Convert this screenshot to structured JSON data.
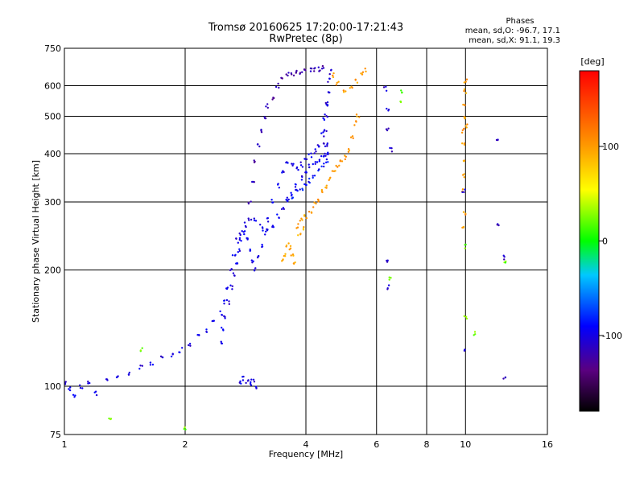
{
  "chart_data": {
    "type": "scatter",
    "title": "Tromsø 20160625 17:20:00-17:21:43",
    "subtitle": "RwPretec (8p)",
    "xlabel": "Frequency [MHz]",
    "ylabel": "Stationary phase Virtual Height [km]",
    "x_scale": "log",
    "y_scale": "log",
    "xlim": [
      1,
      16
    ],
    "ylim": [
      75,
      750
    ],
    "x_ticks": [
      1,
      2,
      4,
      6,
      8,
      10,
      16
    ],
    "y_ticks": [
      75,
      100,
      200,
      300,
      400,
      500,
      600,
      750
    ],
    "grid": true,
    "stats": {
      "title": "Phases",
      "line1": "mean, sd,O: -96.7, 17.1",
      "line2": "mean, sd,X:  91.1, 19.3"
    },
    "colorbar": {
      "label": "[deg]",
      "range": [
        -180,
        180
      ],
      "ticks": [
        100,
        0,
        -100
      ]
    },
    "traces": [
      {
        "phase": -100,
        "points": [
          [
            1.0,
            102
          ],
          [
            1.03,
            98
          ],
          [
            1.06,
            95
          ],
          [
            1.1,
            100
          ],
          [
            1.15,
            103
          ],
          [
            1.2,
            96
          ],
          [
            1.28,
            104
          ],
          [
            1.35,
            106
          ],
          [
            1.45,
            108
          ],
          [
            1.55,
            112
          ],
          [
            1.65,
            115
          ],
          [
            1.75,
            118
          ],
          [
            1.85,
            120
          ],
          [
            1.95,
            124
          ],
          [
            2.05,
            128
          ],
          [
            2.15,
            134
          ],
          [
            2.25,
            140
          ],
          [
            2.35,
            147
          ],
          [
            2.45,
            155
          ],
          [
            2.5,
            165
          ],
          [
            2.55,
            180
          ],
          [
            2.6,
            200
          ],
          [
            2.65,
            220
          ],
          [
            2.7,
            238
          ],
          [
            2.75,
            250
          ],
          [
            2.82,
            262
          ],
          [
            2.9,
            270
          ],
          [
            3.0,
            268
          ],
          [
            3.1,
            260
          ],
          [
            3.2,
            255
          ],
          [
            3.3,
            262
          ],
          [
            3.4,
            275
          ],
          [
            3.5,
            290
          ],
          [
            3.6,
            305
          ],
          [
            3.7,
            315
          ],
          [
            3.8,
            330
          ],
          [
            3.9,
            345
          ],
          [
            4.0,
            360
          ],
          [
            4.1,
            370
          ],
          [
            4.2,
            378
          ],
          [
            4.3,
            385
          ],
          [
            4.4,
            390
          ],
          [
            4.5,
            400
          ],
          [
            4.55,
            420
          ]
        ]
      },
      {
        "phase": -100,
        "points": [
          [
            2.45,
            130
          ],
          [
            2.48,
            140
          ],
          [
            2.52,
            150
          ],
          [
            2.56,
            165
          ],
          [
            2.6,
            180
          ],
          [
            2.64,
            195
          ],
          [
            2.68,
            210
          ],
          [
            2.72,
            225
          ],
          [
            2.76,
            240
          ],
          [
            2.8,
            250
          ],
          [
            2.85,
            240
          ],
          [
            2.9,
            225
          ],
          [
            2.95,
            210
          ],
          [
            3.0,
            200
          ],
          [
            3.05,
            215
          ],
          [
            3.1,
            230
          ],
          [
            3.15,
            250
          ],
          [
            3.2,
            270
          ],
          [
            3.3,
            300
          ],
          [
            3.4,
            330
          ],
          [
            3.5,
            360
          ],
          [
            3.6,
            380
          ],
          [
            3.7,
            372
          ],
          [
            3.8,
            368
          ],
          [
            3.9,
            375
          ],
          [
            4.0,
            385
          ],
          [
            4.1,
            395
          ],
          [
            4.2,
            405
          ],
          [
            4.3,
            420
          ],
          [
            4.4,
            450
          ],
          [
            4.45,
            490
          ],
          [
            4.5,
            530
          ]
        ]
      },
      {
        "phase": -120,
        "points": [
          [
            2.9,
            300
          ],
          [
            2.95,
            340
          ],
          [
            3.0,
            380
          ],
          [
            3.05,
            420
          ],
          [
            3.1,
            460
          ],
          [
            3.15,
            500
          ],
          [
            3.2,
            530
          ],
          [
            3.3,
            560
          ],
          [
            3.4,
            600
          ],
          [
            3.5,
            625
          ],
          [
            3.6,
            640
          ],
          [
            3.7,
            645
          ],
          [
            3.8,
            650
          ],
          [
            3.9,
            652
          ],
          [
            4.0,
            655
          ],
          [
            4.1,
            658
          ],
          [
            4.2,
            660
          ],
          [
            4.3,
            660
          ],
          [
            4.4,
            665
          ]
        ]
      },
      {
        "phase": -90,
        "points": [
          [
            3.6,
            300
          ],
          [
            3.7,
            310
          ],
          [
            3.8,
            318
          ],
          [
            3.9,
            325
          ],
          [
            4.0,
            332
          ],
          [
            4.1,
            340
          ],
          [
            4.2,
            350
          ],
          [
            4.3,
            360
          ],
          [
            4.4,
            372
          ],
          [
            4.5,
            385
          ],
          [
            4.55,
            400
          ]
        ]
      },
      {
        "phase": -110,
        "points": [
          [
            4.45,
            420
          ],
          [
            4.48,
            460
          ],
          [
            4.5,
            500
          ],
          [
            4.52,
            540
          ],
          [
            4.55,
            580
          ],
          [
            4.57,
            620
          ],
          [
            4.6,
            650
          ]
        ]
      },
      {
        "phase": -100,
        "points": [
          [
            2.75,
            102
          ],
          [
            2.8,
            105
          ],
          [
            2.85,
            103
          ],
          [
            2.9,
            101
          ],
          [
            2.95,
            104
          ],
          [
            3.0,
            100
          ]
        ]
      },
      {
        "phase": 100,
        "points": [
          [
            3.8,
            260
          ],
          [
            3.9,
            268
          ],
          [
            4.0,
            275
          ],
          [
            4.1,
            285
          ],
          [
            4.2,
            295
          ],
          [
            4.3,
            305
          ],
          [
            4.4,
            318
          ],
          [
            4.5,
            330
          ],
          [
            4.6,
            345
          ],
          [
            4.7,
            360
          ],
          [
            4.8,
            372
          ],
          [
            4.9,
            380
          ],
          [
            5.0,
            392
          ],
          [
            5.1,
            410
          ],
          [
            5.2,
            440
          ],
          [
            5.3,
            480
          ],
          [
            5.4,
            500
          ]
        ]
      },
      {
        "phase": 90,
        "points": [
          [
            3.5,
            210
          ],
          [
            3.55,
            220
          ],
          [
            3.6,
            232
          ],
          [
            3.65,
            228
          ],
          [
            3.7,
            218
          ],
          [
            3.75,
            210
          ],
          [
            3.85,
            245
          ],
          [
            3.95,
            255
          ]
        ]
      },
      {
        "phase": 100,
        "points": [
          [
            5.2,
            600
          ],
          [
            5.35,
            620
          ],
          [
            5.5,
            640
          ],
          [
            5.6,
            655
          ],
          [
            5.0,
            580
          ],
          [
            4.8,
            610
          ],
          [
            4.7,
            640
          ]
        ]
      },
      {
        "phase": 100,
        "points": [
          [
            9.9,
            500
          ],
          [
            9.9,
            540
          ],
          [
            9.95,
            580
          ],
          [
            10.0,
            620
          ],
          [
            9.85,
            460
          ],
          [
            9.9,
            420
          ],
          [
            9.95,
            380
          ],
          [
            9.9,
            350
          ],
          [
            9.9,
            320
          ],
          [
            9.95,
            280
          ],
          [
            9.9,
            260
          ],
          [
            10.05,
            470
          ]
        ]
      },
      {
        "phase": -110,
        "points": [
          [
            6.3,
            590
          ],
          [
            6.4,
            520
          ],
          [
            6.4,
            460
          ],
          [
            6.5,
            410
          ],
          [
            6.4,
            210
          ],
          [
            6.45,
            180
          ],
          [
            10.0,
            125
          ],
          [
            9.9,
            320
          ],
          [
            12.0,
            440
          ],
          [
            12.0,
            260
          ],
          [
            12.5,
            215
          ],
          [
            12.5,
            105
          ]
        ]
      },
      {
        "phase": 20,
        "points": [
          [
            1.3,
            82
          ],
          [
            1.55,
            125
          ],
          [
            2.0,
            78
          ],
          [
            10.5,
            137
          ],
          [
            6.5,
            190
          ],
          [
            6.9,
            580
          ],
          [
            12.5,
            210
          ],
          [
            10.0,
            230
          ],
          [
            6.9,
            550
          ],
          [
            10.0,
            150
          ]
        ]
      }
    ]
  }
}
